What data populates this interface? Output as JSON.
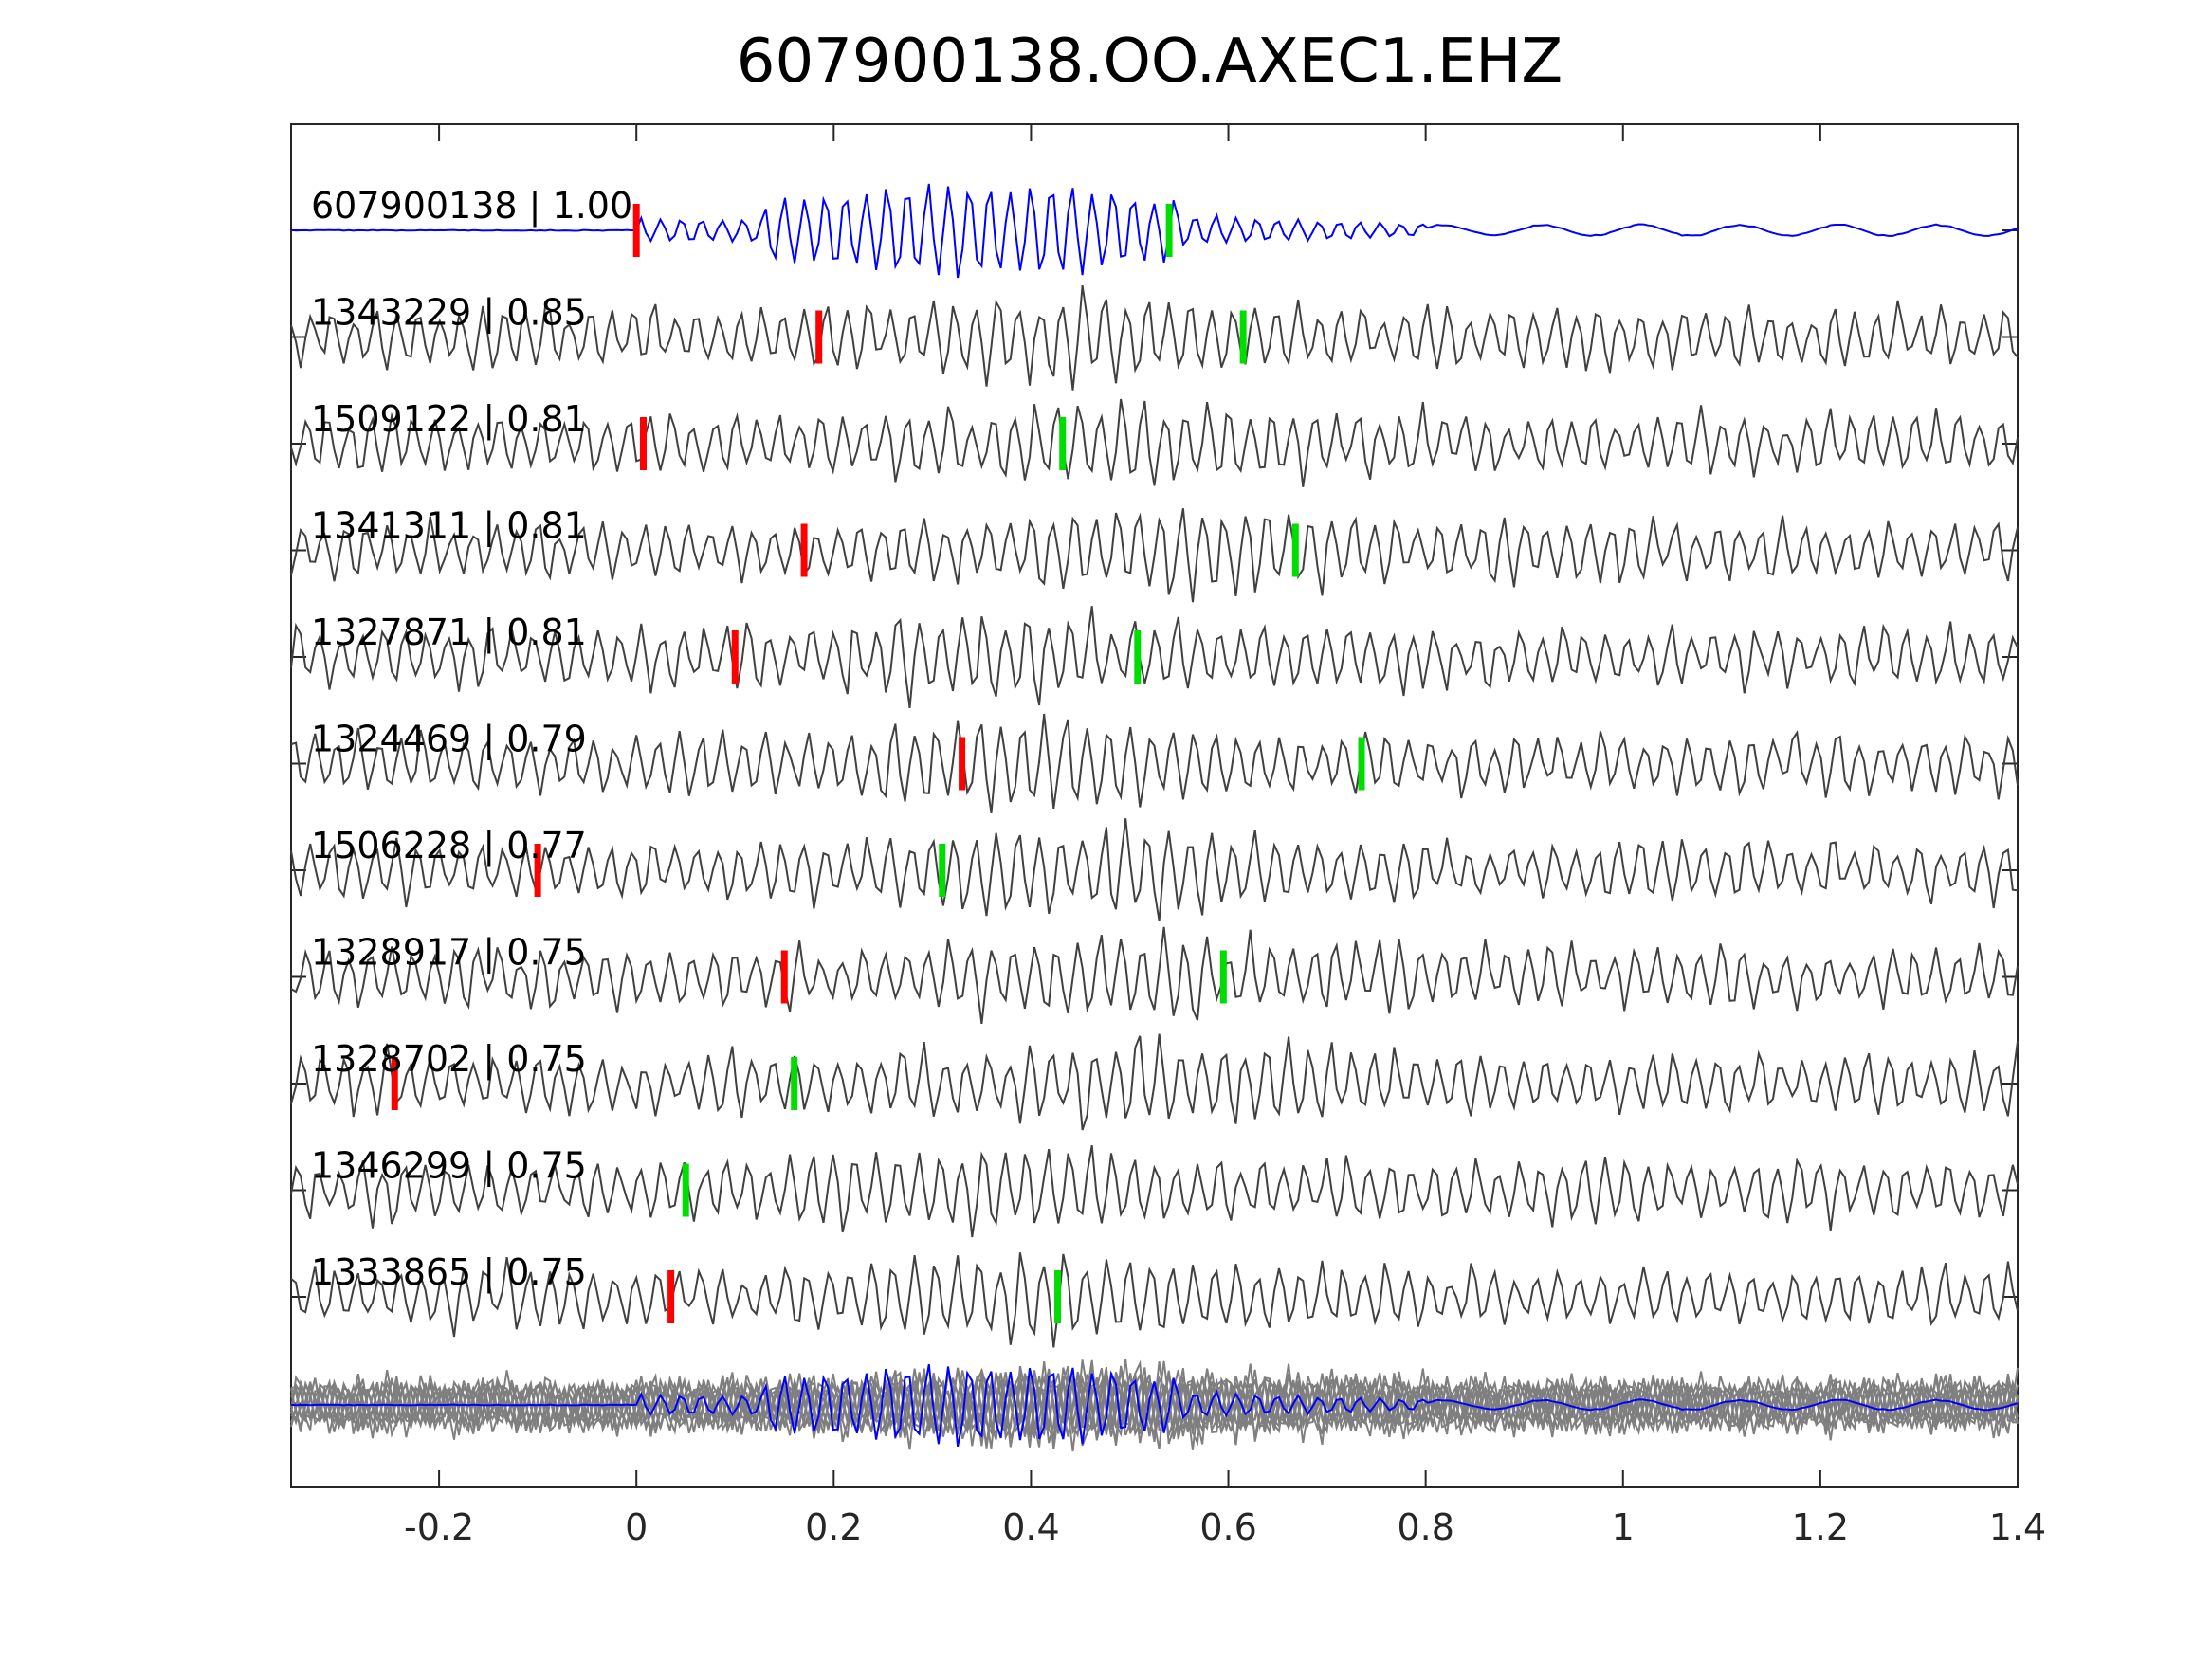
{
  "chart_data": {
    "type": "line",
    "title": "607900138.OO.AXEC1.EHZ",
    "xlabel": "",
    "ylabel": "",
    "xlim": [
      -0.35,
      1.4
    ],
    "xticks": [
      {
        "value": -0.2,
        "label": "-0.2"
      },
      {
        "value": 0,
        "label": "0"
      },
      {
        "value": 0.2,
        "label": "0.2"
      },
      {
        "value": 0.4,
        "label": "0.4"
      },
      {
        "value": 0.6,
        "label": "0.6"
      },
      {
        "value": 0.8,
        "label": "0.8"
      },
      {
        "value": 1,
        "label": "1"
      },
      {
        "value": 1.2,
        "label": "1.2"
      },
      {
        "value": 1.4,
        "label": "1.4"
      }
    ],
    "grid": false,
    "colors": {
      "template": "#0000ff",
      "trace": "#404040",
      "stack": "#7f7f7f",
      "p_pick": "#ff0000",
      "s_pick": "#00dd00"
    },
    "series": [
      {
        "label": "607900138 | 1.00",
        "p_pick": 0.0,
        "s_pick": 0.54,
        "template": true
      },
      {
        "label": "1343229 | 0.85",
        "p_pick": 0.185,
        "s_pick": 0.615
      },
      {
        "label": "1509122 | 0.81",
        "p_pick": 0.007,
        "s_pick": 0.432
      },
      {
        "label": "1341311 | 0.81",
        "p_pick": 0.17,
        "s_pick": 0.668
      },
      {
        "label": "1327871 | 0.81",
        "p_pick": 0.1,
        "s_pick": 0.508
      },
      {
        "label": "1324469 | 0.79",
        "p_pick": 0.33,
        "s_pick": 0.735
      },
      {
        "label": "1506228 | 0.77",
        "p_pick": -0.1,
        "s_pick": 0.31
      },
      {
        "label": "1328917 | 0.75",
        "p_pick": 0.15,
        "s_pick": 0.595
      },
      {
        "label": "1328702 | 0.75",
        "p_pick": -0.245,
        "s_pick": 0.16
      },
      {
        "label": "1346299 | 0.75",
        "p_pick": null,
        "s_pick": 0.05
      },
      {
        "label": "1333865 | 0.75",
        "p_pick": 0.035,
        "s_pick": 0.427
      }
    ]
  }
}
